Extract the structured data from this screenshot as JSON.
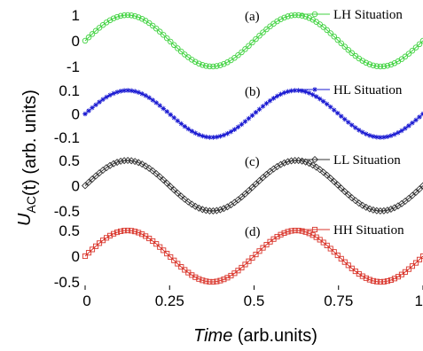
{
  "chart_data": {
    "type": "line",
    "xlabel_italic": "Time",
    "xlabel_rest": " (arb.units)",
    "ylabel_main": "U",
    "ylabel_sub": "AC",
    "ylabel_rest": "(t) (arb. units)",
    "xlim": [
      0,
      1
    ],
    "xtick_labels": [
      "0",
      "0.25",
      "0.5",
      "0.75",
      "1"
    ],
    "x_period": 0.5,
    "panels": [
      {
        "tag": "(a)",
        "name": "LH Situation",
        "color": "#3fd23f",
        "marker": "circle",
        "amplitude": 1,
        "ylim": [
          -1,
          1
        ],
        "ytick_labels": [
          "1",
          "0",
          "-1"
        ]
      },
      {
        "tag": "(b)",
        "name": "HL Situation",
        "color": "#1a1ad2",
        "marker": "asterisk",
        "amplitude": 0.1,
        "ylim": [
          -0.1,
          0.1
        ],
        "ytick_labels": [
          "0.1",
          "0",
          "-0.1"
        ]
      },
      {
        "tag": "(c)",
        "name": "LL Situation",
        "color": "#333333",
        "marker": "diamond",
        "amplitude": 0.5,
        "ylim": [
          -0.5,
          0.5
        ],
        "ytick_labels": [
          "0.5",
          "0",
          "-0.5"
        ]
      },
      {
        "tag": "(d)",
        "name": "HH Situation",
        "color": "#d9352b",
        "marker": "square",
        "amplitude": 0.5,
        "ylim": [
          -0.5,
          0.5
        ],
        "ytick_labels": [
          "0.5",
          "0",
          "-0.5"
        ]
      }
    ]
  }
}
